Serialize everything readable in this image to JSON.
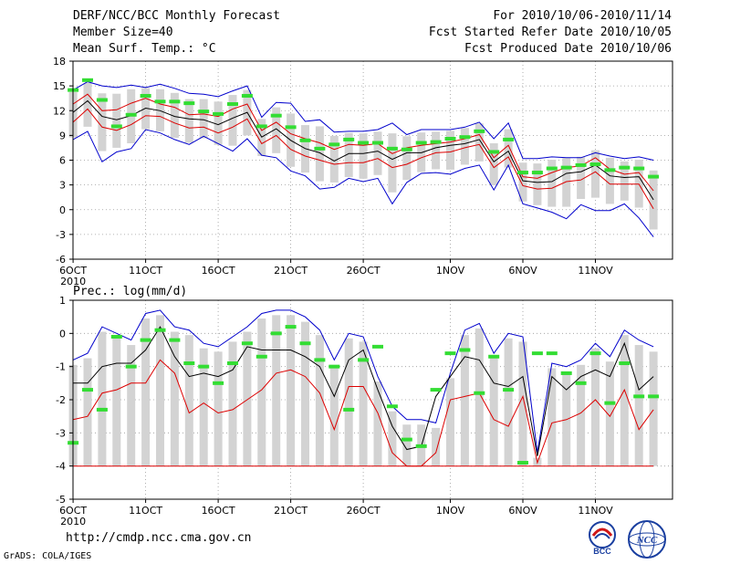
{
  "header": {
    "title": "DERF/NCC/BCC Monthly Forecast",
    "member_size": "Member Size=40",
    "variable": "Mean Surf. Temp.: °C",
    "period": "For 2010/10/06-2010/11/14",
    "started": "Fcst Started Refer Date 2010/10/05",
    "produced": "Fcst Produced Date 2010/10/06"
  },
  "footer": {
    "url": "http://cmdp.ncc.cma.gov.cn",
    "credit": "GrADS: COLA/IGES",
    "logo_bcc": "BCC",
    "logo_ncc": "NCC"
  },
  "colors": {
    "ensemble_mean": "#000000",
    "max_line": "#0000cc",
    "min_line": "#dd0000",
    "box": "#d3d3d3",
    "marker": "#33dd33"
  },
  "chart_data": [
    {
      "type": "line",
      "title": "Mean Surf. Temp.: °C",
      "x_ticks": [
        {
          "day": 0,
          "label": "6OCT"
        },
        {
          "day": 5,
          "label": "11OCT"
        },
        {
          "day": 10,
          "label": "16OCT"
        },
        {
          "day": 15,
          "label": "21OCT"
        },
        {
          "day": 20,
          "label": "26OCT"
        },
        {
          "day": 26,
          "label": "1NOV"
        },
        {
          "day": 31,
          "label": "6NOV"
        },
        {
          "day": 36,
          "label": "11NOV"
        }
      ],
      "x_year_label": "2010",
      "ylim": [
        -6,
        18
      ],
      "yticks": [
        -6,
        -3,
        0,
        3,
        6,
        9,
        12,
        15,
        18
      ],
      "days": 39,
      "series": [
        {
          "name": "max",
          "values": [
            8.5,
            9.5,
            5.8,
            7,
            7.4,
            9.7,
            9.3,
            8.5,
            7.9,
            8.9,
            8,
            7.1,
            8.6,
            6.6,
            6.3,
            4.7,
            4.1,
            2.5,
            2.7,
            3.8,
            3.4,
            3.8,
            0.7,
            3.3,
            4.4,
            4.5,
            4.3,
            5,
            5.4,
            2.4,
            5.4,
            0.7,
            0.2,
            -0.3,
            -1.1,
            0.6,
            -0.1,
            -0.1,
            0.7,
            -1,
            -3.3
          ]
        },
        {
          "name": "upper",
          "values": [
            14.5,
            15.5,
            15,
            14.8,
            15.1,
            14.8,
            15.2,
            14.7,
            14.1,
            14,
            13.7,
            14.4,
            15,
            11.2,
            13,
            12.9,
            10.7,
            10.9,
            9.4,
            9.5,
            9.5,
            9.7,
            10.5,
            9.1,
            9.7,
            9.7,
            9.7,
            10,
            10.6,
            8.6,
            10.5,
            6.2,
            6.2,
            6.4,
            6.3,
            6.3,
            6.9,
            6.5,
            6.2,
            6.4,
            6
          ]
        },
        {
          "name": "mean_plus",
          "values": [
            12.8,
            14,
            12,
            12.1,
            12.9,
            13.5,
            12.8,
            12.4,
            11.5,
            11.6,
            11.3,
            12.2,
            12.8,
            9.6,
            10.6,
            9.2,
            8.6,
            8.1,
            7.3,
            7.9,
            7.8,
            8,
            6.8,
            7.5,
            7.8,
            8,
            8.2,
            8.6,
            9.1,
            6.3,
            7.8,
            4,
            3.8,
            4.5,
            5.1,
            5.3,
            6.3,
            4.9,
            4.3,
            4.5,
            2.3
          ]
        },
        {
          "name": "mean",
          "values": [
            11.8,
            13.2,
            11.3,
            10.9,
            11.4,
            12.3,
            12,
            11.3,
            11,
            10.9,
            10.3,
            11.1,
            11.8,
            8.8,
            9.8,
            8.4,
            7.4,
            6.9,
            5.9,
            6.8,
            6.8,
            7.1,
            6.1,
            6.9,
            6.9,
            7.5,
            7.8,
            8,
            8.5,
            5.8,
            7.1,
            3.5,
            3.3,
            3.4,
            4.4,
            4.6,
            5.4,
            4.1,
            3.9,
            4,
            1.2
          ]
        },
        {
          "name": "mean_minus",
          "values": [
            10.6,
            12.2,
            10,
            9.6,
            10.3,
            11.4,
            11.3,
            10.5,
            9.9,
            10,
            9.3,
            10,
            11,
            8,
            9,
            7.3,
            6.5,
            6,
            5.5,
            5.7,
            5.7,
            6.2,
            5.1,
            5.5,
            6.3,
            6.9,
            7,
            7.5,
            7.9,
            5.1,
            6.4,
            2.9,
            2.5,
            2.6,
            3.4,
            3.6,
            4.6,
            3.1,
            3.1,
            3.1,
            0.1
          ]
        }
      ],
      "markers": [
        14.5,
        15.7,
        13.3,
        10.1,
        11.5,
        13.8,
        13.1,
        13.1,
        12.9,
        11.9,
        11.6,
        12.8,
        13.8,
        10.1,
        11.4,
        10,
        8.4,
        7.4,
        7.9,
        8.5,
        8.1,
        8.1,
        7.4,
        7.3,
        8.1,
        8.2,
        8.6,
        8.8,
        9.5,
        7,
        8.5,
        4.5,
        4.5,
        5,
        5.1,
        5.4,
        5.5,
        4.8,
        5.1,
        5,
        4
      ]
    },
    {
      "type": "line",
      "title": "Prec.: log(mm/d)",
      "x_ticks": [
        {
          "day": 0,
          "label": "6OCT"
        },
        {
          "day": 5,
          "label": "11OCT"
        },
        {
          "day": 10,
          "label": "16OCT"
        },
        {
          "day": 15,
          "label": "21OCT"
        },
        {
          "day": 20,
          "label": "26OCT"
        },
        {
          "day": 26,
          "label": "1NOV"
        },
        {
          "day": 31,
          "label": "6NOV"
        },
        {
          "day": 36,
          "label": "11NOV"
        }
      ],
      "x_year_label": "2010",
      "ylim": [
        -5,
        1
      ],
      "yticks": [
        -5,
        -4,
        -3,
        -2,
        -1,
        0,
        1
      ],
      "days": 39,
      "series": [
        {
          "name": "max",
          "values": [
            -0.8,
            -0.6,
            0.2,
            0,
            -0.2,
            0.6,
            0.7,
            0.2,
            0.1,
            -0.3,
            -0.4,
            -0.1,
            0.2,
            0.6,
            0.7,
            0.7,
            0.5,
            0.1,
            -0.8,
            0,
            -0.1,
            -1.3,
            -2.2,
            -2.6,
            -2.6,
            -2.7,
            -1.2,
            0.1,
            0.3,
            -0.6,
            0,
            -0.1,
            -3.6,
            -0.9,
            -1,
            -0.8,
            -0.3,
            -0.7,
            0.1,
            -0.2,
            -0.4
          ]
        },
        {
          "name": "mean",
          "values": [
            -1.5,
            -1.5,
            -1,
            -0.9,
            -0.9,
            -0.5,
            0.2,
            -0.7,
            -1.3,
            -1.2,
            -1.3,
            -1.1,
            -0.4,
            -0.5,
            -0.5,
            -0.5,
            -0.7,
            -1,
            -1.9,
            -0.8,
            -0.5,
            -1.7,
            -2.8,
            -3.5,
            -3.4,
            -1.9,
            -1.3,
            -0.7,
            -0.8,
            -1.5,
            -1.6,
            -1.3,
            -3.7,
            -1.3,
            -1.7,
            -1.3,
            -1.1,
            -1.3,
            -0.3,
            -1.7,
            -1.3
          ]
        },
        {
          "name": "min",
          "values": [
            -2.6,
            -2.5,
            -1.8,
            -1.7,
            -1.5,
            -1.5,
            -0.8,
            -1.2,
            -2.4,
            -2.1,
            -2.4,
            -2.3,
            -2,
            -1.7,
            -1.2,
            -1.1,
            -1.3,
            -1.8,
            -2.9,
            -1.6,
            -1.6,
            -2.4,
            -3.6,
            -4,
            -4,
            -3.6,
            -2,
            -1.9,
            -1.8,
            -2.6,
            -2.8,
            -1.9,
            -3.9,
            -2.7,
            -2.6,
            -2.4,
            -2,
            -2.5,
            -1.7,
            -2.9,
            -2.3
          ]
        },
        {
          "name": "floor",
          "values": [
            -4,
            -4,
            -4,
            -4,
            -4,
            -4,
            -4,
            -4,
            -4,
            -4,
            -4,
            -4,
            -4,
            -4,
            -4,
            -4,
            -4,
            -4,
            -4,
            -4,
            -4,
            -4,
            -4,
            -4,
            -4,
            -4,
            -4,
            -4,
            -4,
            -4,
            -4,
            -4,
            -4,
            -4,
            -4,
            -4,
            -4,
            -4,
            -4,
            -4,
            -4
          ]
        }
      ],
      "markers": [
        -3.3,
        -1.7,
        -2.3,
        -0.1,
        -1,
        -0.2,
        0.1,
        -0.2,
        -0.9,
        -1,
        -1.5,
        -0.9,
        -0.3,
        -0.7,
        0,
        0.2,
        -0.3,
        -0.8,
        -1,
        -2.3,
        -0.8,
        -0.4,
        -2.2,
        -3.2,
        -3.4,
        -1.7,
        -0.6,
        -0.5,
        -1.8,
        -0.7,
        -1.7,
        -3.9,
        -0.6,
        -0.6,
        -1.2,
        -1.5,
        -0.6,
        -2.1,
        -0.9,
        -1.9,
        -1.9
      ]
    }
  ]
}
